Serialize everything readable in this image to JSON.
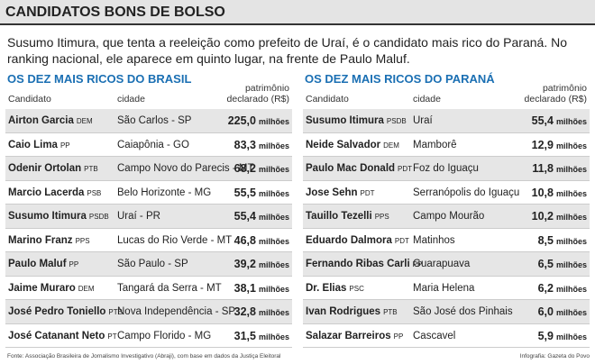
{
  "header": {
    "title": "CANDIDATOS BONS DE BOLSO"
  },
  "intro": "Susumo Itimura, que tenta a reeleição como prefeito de Uraí, é o candidato mais rico do Paraná. No ranking nacional, ele aparece em quinto lugar, na frente de Paulo Maluf.",
  "tables": [
    {
      "title": "OS DEZ MAIS RICOS DO BRASIL",
      "columns": [
        "Candidato",
        "cidade",
        "patrimônio declarado (R$)"
      ],
      "rows": [
        {
          "name": "Airton Garcia",
          "party": "DEM",
          "city": "São Carlos - SP",
          "value": "225,0",
          "unit": "milhões"
        },
        {
          "name": "Caio Lima",
          "party": "PP",
          "city": "Caiapônia - GO",
          "value": "83,3",
          "unit": "milhões"
        },
        {
          "name": "Odenir Ortolan",
          "party": "PTB",
          "city": "Campo Novo do Parecis - MT",
          "value": "68,2",
          "unit": "milhões"
        },
        {
          "name": "Marcio Lacerda",
          "party": "PSB",
          "city": "Belo Horizonte - MG",
          "value": "55,5",
          "unit": "milhões"
        },
        {
          "name": "Susumo Itimura",
          "party": "PSDB",
          "city": "Uraí - PR",
          "value": "55,4",
          "unit": "milhões"
        },
        {
          "name": "Marino Franz",
          "party": "PPS",
          "city": "Lucas do Rio Verde - MT",
          "value": "46,8",
          "unit": "milhões"
        },
        {
          "name": "Paulo Maluf",
          "party": "PP",
          "city": "São Paulo - SP",
          "value": "39,2",
          "unit": "milhões"
        },
        {
          "name": "Jaime Muraro",
          "party": "DEM",
          "city": "Tangará da Serra - MT",
          "value": "38,1",
          "unit": "milhões"
        },
        {
          "name": "José Pedro Toniello",
          "party": "PTB",
          "city": "Nova Independência - SP",
          "value": "32,8",
          "unit": "milhões"
        },
        {
          "name": "José Catanant Neto",
          "party": "PT",
          "city": "Campo Florido - MG",
          "value": "31,5",
          "unit": "milhões"
        }
      ]
    },
    {
      "title": "OS DEZ MAIS RICOS DO PARANÁ",
      "columns": [
        "Candidato",
        "cidade",
        "patrimônio declarado (R$)"
      ],
      "rows": [
        {
          "name": "Susumo Itimura",
          "party": "PSDB",
          "city": "Uraí",
          "value": "55,4",
          "unit": "milhões"
        },
        {
          "name": "Neide Salvador",
          "party": "DEM",
          "city": "Mamborê",
          "value": "12,9",
          "unit": "milhões"
        },
        {
          "name": "Paulo Mac Donald",
          "party": "PDT",
          "city": "Foz do Iguaçu",
          "value": "11,8",
          "unit": "milhões"
        },
        {
          "name": "Jose Sehn",
          "party": "PDT",
          "city": "Serranópolis do Iguaçu",
          "value": "10,8",
          "unit": "milhões"
        },
        {
          "name": "Tauillo Tezelli",
          "party": "PPS",
          "city": "Campo Mourão",
          "value": "10,2",
          "unit": "milhões"
        },
        {
          "name": "Eduardo Dalmora",
          "party": "PDT",
          "city": "Matinhos",
          "value": "8,5",
          "unit": "milhões"
        },
        {
          "name": "Fernando Ribas Carli",
          "party": "PP",
          "city": "Guarapuava",
          "value": "6,5",
          "unit": "milhões"
        },
        {
          "name": "Dr. Elias",
          "party": "PSC",
          "city": "Maria Helena",
          "value": "6,2",
          "unit": "milhões"
        },
        {
          "name": "Ivan Rodrigues",
          "party": "PTB",
          "city": "São José dos Pinhais",
          "value": "6,0",
          "unit": "milhões"
        },
        {
          "name": "Salazar Barreiros",
          "party": "PP",
          "city": "Cascavel",
          "value": "5,9",
          "unit": "milhões"
        }
      ]
    }
  ],
  "footer": {
    "source": "Fonte: Associação Brasileira de Jornalismo Investigativo (Abraji), com base em dados da Justiça Eleitoral",
    "credit": "Infografia: Gazeta do Povo"
  }
}
